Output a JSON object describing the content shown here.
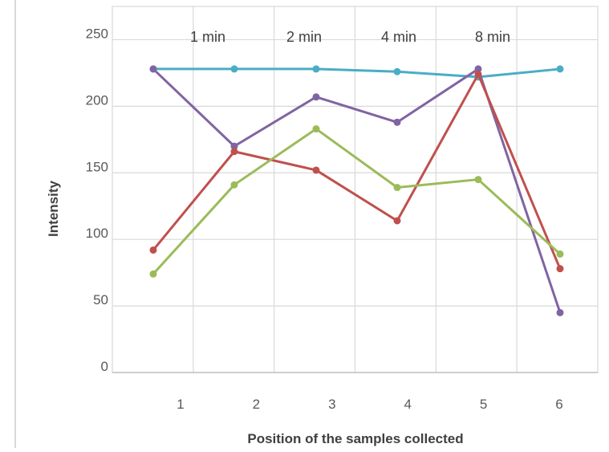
{
  "chart_data": {
    "type": "line",
    "title": "",
    "xlabel": "Position of the samples collected",
    "ylabel": "Intensity",
    "categories": [
      "1",
      "2",
      "3",
      "4",
      "5",
      "6"
    ],
    "x_positions": [
      1.0,
      2.0,
      3.0,
      4.0,
      5.0,
      6.0
    ],
    "ylim": [
      0,
      275
    ],
    "yticks": [
      0,
      50,
      100,
      150,
      200,
      250
    ],
    "grid": true,
    "annotations": [
      "1 min",
      "2 min",
      "4 min",
      "8 min"
    ],
    "series": [
      {
        "color": "#4bacc6",
        "values": [
          228,
          228,
          228,
          226,
          222,
          228
        ]
      },
      {
        "color": "#8064a2",
        "values": [
          228,
          170,
          207,
          188,
          228,
          45
        ]
      },
      {
        "color": "#c0504d",
        "values": [
          92,
          166,
          152,
          114,
          224,
          78
        ]
      },
      {
        "color": "#9bbb59",
        "values": [
          74,
          141,
          183,
          139,
          145,
          89
        ]
      }
    ]
  }
}
